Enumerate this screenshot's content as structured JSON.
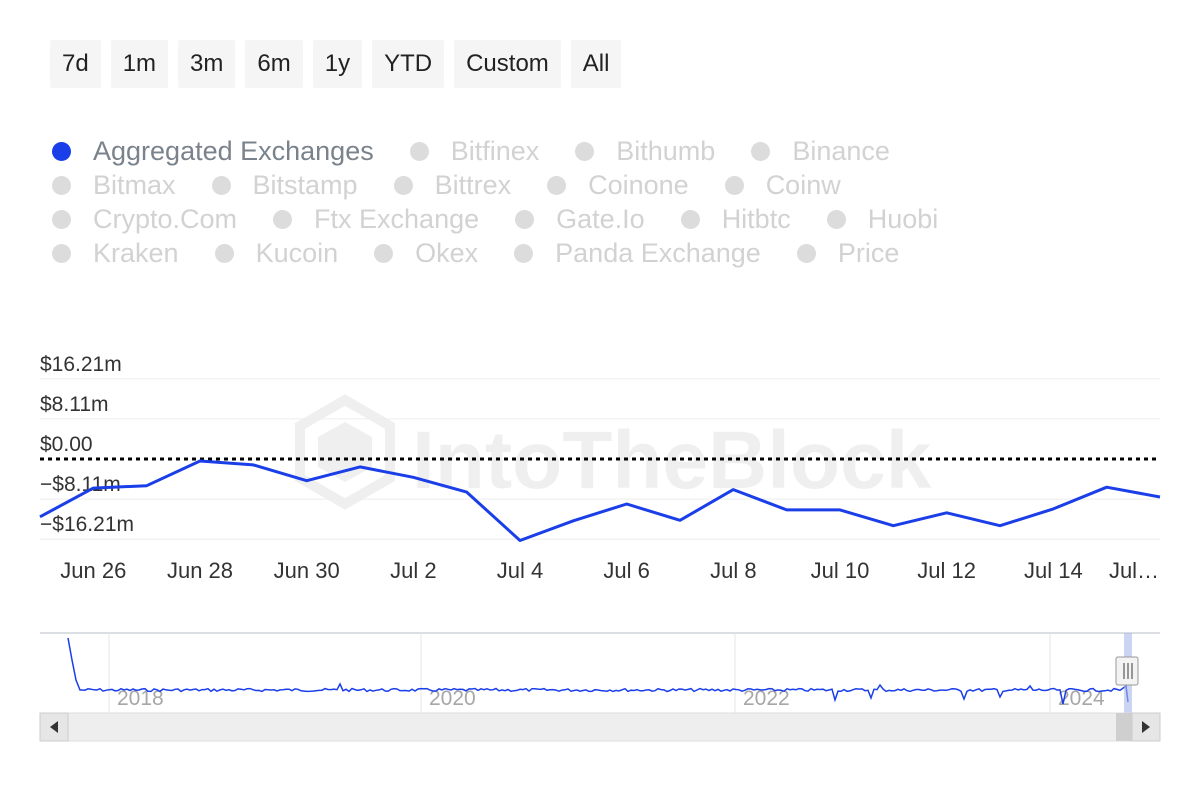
{
  "range_buttons": [
    "7d",
    "1m",
    "3m",
    "6m",
    "1y",
    "YTD",
    "Custom",
    "All"
  ],
  "legend": {
    "rows": [
      [
        {
          "label": "Aggregated Exchanges",
          "active": true
        },
        {
          "label": "Bitfinex",
          "active": false
        },
        {
          "label": "Bithumb",
          "active": false
        },
        {
          "label": "Binance",
          "active": false
        }
      ],
      [
        {
          "label": "Bitmax",
          "active": false
        },
        {
          "label": "Bitstamp",
          "active": false
        },
        {
          "label": "Bittrex",
          "active": false
        },
        {
          "label": "Coinone",
          "active": false
        },
        {
          "label": "Coinw",
          "active": false
        }
      ],
      [
        {
          "label": "Crypto.Com",
          "active": false
        },
        {
          "label": "Ftx Exchange",
          "active": false
        },
        {
          "label": "Gate.Io",
          "active": false
        },
        {
          "label": "Hitbtc",
          "active": false
        },
        {
          "label": "Huobi",
          "active": false
        }
      ],
      [
        {
          "label": "Kraken",
          "active": false
        },
        {
          "label": "Kucoin",
          "active": false
        },
        {
          "label": "Okex",
          "active": false
        },
        {
          "label": "Panda Exchange",
          "active": false
        },
        {
          "label": "Price",
          "active": false
        }
      ]
    ]
  },
  "watermark": "IntoTheBlock",
  "chart_data": {
    "type": "line",
    "series": [
      {
        "name": "Aggregated Exchanges",
        "color": "#1a3ee8",
        "x": [
          "Jun 25",
          "Jun 26",
          "Jun 27",
          "Jun 28",
          "Jun 29",
          "Jun 30",
          "Jul 1",
          "Jul 2",
          "Jul 3",
          "Jul 4",
          "Jul 5",
          "Jul 6",
          "Jul 7",
          "Jul 8",
          "Jul 9",
          "Jul 10",
          "Jul 11",
          "Jul 12",
          "Jul 13",
          "Jul 14",
          "Jul 15",
          "Jul 16"
        ],
        "values": [
          -11.7,
          -5.9,
          -5.4,
          -0.4,
          -1.2,
          -4.4,
          -1.6,
          -3.7,
          -6.7,
          -16.5,
          -12.5,
          -9.1,
          -12.4,
          -6.2,
          -10.3,
          -10.3,
          -13.5,
          -10.9,
          -13.5,
          -10.1,
          -5.7,
          -7.7
        ]
      }
    ],
    "x_tick_labels": [
      "Jun 26",
      "Jun 28",
      "Jun 30",
      "Jul 2",
      "Jul 4",
      "Jul 6",
      "Jul 8",
      "Jul 10",
      "Jul 12",
      "Jul 14",
      "Jul…"
    ],
    "y_tick_labels": [
      "$16.21m",
      "$8.11m",
      "$0.00",
      "−$8.11m",
      "−$16.21m"
    ],
    "y_ticks": [
      16.21,
      8.11,
      0,
      -8.11,
      -16.21
    ],
    "ylim": [
      -17.5,
      17.5
    ],
    "zero_line": "dotted",
    "grid": true,
    "navigator": {
      "tick_labels": [
        "2018",
        "2020",
        "2022",
        "2024"
      ],
      "has_scrollbar": true
    }
  }
}
